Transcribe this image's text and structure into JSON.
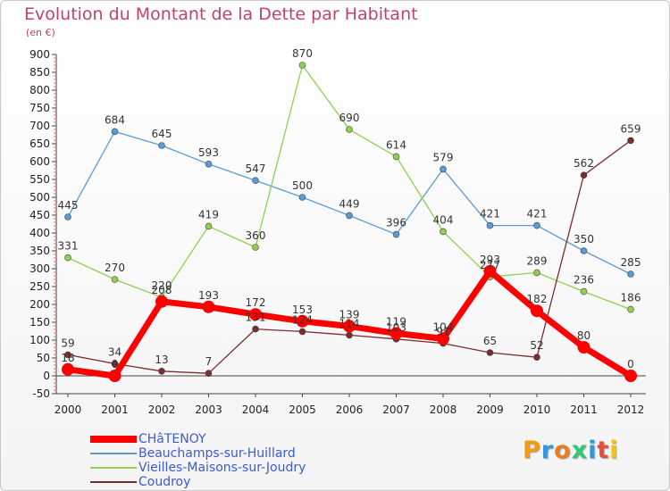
{
  "title": "Evolution du Montant de la Dette par Habitant",
  "subtitle": "(en €)",
  "logo": {
    "text": "Proxiti",
    "letter_colors": [
      "#f39c12",
      "#3498db",
      "#e67e22",
      "#2ecc71",
      "#3498db",
      "#e74c3c",
      "#f1c40f"
    ]
  },
  "chart_data": {
    "type": "line",
    "title": "Evolution du Montant de la Dette par Habitant",
    "ylabel": "(en €)",
    "xlabel": "",
    "x": [
      "2000",
      "2001",
      "2002",
      "2003",
      "2004",
      "2005",
      "2006",
      "2007",
      "2008",
      "2009",
      "2010",
      "2011",
      "2012"
    ],
    "ylim": [
      -50,
      900
    ],
    "yticks": [
      "-50",
      "0",
      "50",
      "100",
      "150",
      "200",
      "250",
      "300",
      "350",
      "400",
      "450",
      "500",
      "550",
      "600",
      "650",
      "700",
      "750",
      "800",
      "850",
      "900"
    ],
    "grid": false,
    "legend_position": "bottom-left",
    "series": [
      {
        "name": "Beauchamps-sur-Huillard",
        "color": "#5b9bd5",
        "values": [
          445,
          684,
          645,
          593,
          547,
          500,
          449,
          396,
          579,
          421,
          421,
          350,
          285
        ]
      },
      {
        "name": "Vieilles-Maisons-sur-Joudry",
        "color": "#8fd14f",
        "values": [
          331,
          270,
          220,
          419,
          360,
          870,
          690,
          614,
          404,
          277,
          289,
          236,
          186
        ]
      },
      {
        "name": "Coudroy",
        "color": "#7b2c2c",
        "values": [
          59,
          34,
          13,
          7,
          131,
          124,
          114,
          103,
          91,
          65,
          52,
          562,
          659
        ]
      },
      {
        "name": "CHâTENOY",
        "color": "#ff0000",
        "values": [
          18,
          0,
          208,
          193,
          172,
          153,
          139,
          119,
          104,
          293,
          182,
          80,
          0
        ]
      }
    ],
    "labels": {
      "Beauchamps-sur-Huillard": [
        "445",
        "684",
        "645",
        "593",
        "547",
        "500",
        "449",
        "396",
        "579",
        "421",
        "421",
        "350",
        "285"
      ],
      "Vieilles-Maisons-sur-Joudry": [
        "331",
        "270",
        "220",
        "419",
        "360",
        "870",
        "690",
        "614",
        "404",
        "277",
        "289",
        "236",
        "186"
      ],
      "Coudroy": [
        "59",
        "34",
        "13",
        "7",
        "131",
        "124",
        "114",
        "103",
        "91",
        "65",
        "52",
        "562",
        "659"
      ],
      "CHâTENOY": [
        "18",
        "0",
        "208",
        "193",
        "172",
        "153",
        "139",
        "119",
        "104",
        "293",
        "182",
        "80",
        "0"
      ]
    },
    "legend": [
      "CHâTENOY",
      "Beauchamps-sur-Huillard",
      "Vieilles-Maisons-sur-Joudry",
      "Coudroy"
    ]
  }
}
